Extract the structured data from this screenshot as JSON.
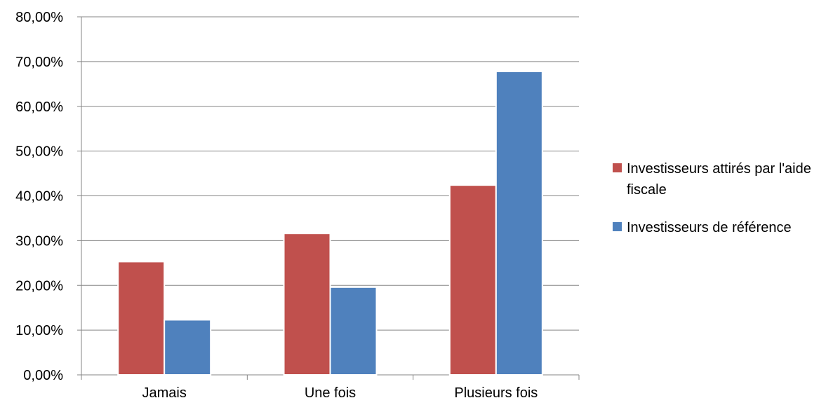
{
  "chart_data": {
    "type": "bar",
    "categories": [
      "Jamais",
      "Une fois",
      "Plusieurs fois"
    ],
    "series": [
      {
        "name": "Investisseurs attirés par l'aide fiscale",
        "values": [
          25.3,
          31.6,
          42.4
        ],
        "color": "#c0504d"
      },
      {
        "name": "Investisseurs de référence",
        "values": [
          12.3,
          19.6,
          67.8
        ],
        "color": "#4f81bd"
      }
    ],
    "ylim": [
      0,
      80
    ],
    "yticks": [
      "0,00%",
      "10,00%",
      "20,00%",
      "30,00%",
      "40,00%",
      "50,00%",
      "60,00%",
      "70,00%",
      "80,00%"
    ],
    "grid": true,
    "legend_position": "right"
  }
}
